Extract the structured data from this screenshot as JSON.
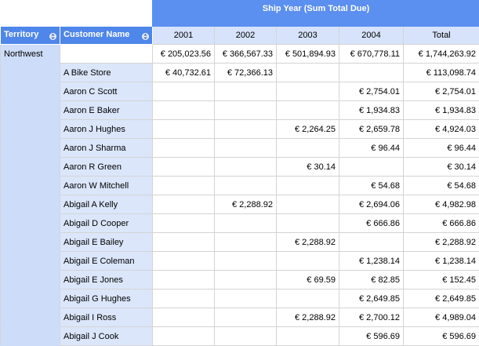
{
  "header": {
    "title": "Ship Year (Sum Total Due)",
    "dimensions": [
      "Territory",
      "Customer Name"
    ],
    "columns": [
      "2001",
      "2002",
      "2003",
      "2004",
      "Total"
    ]
  },
  "rows": [
    {
      "territory": "Northwest",
      "customer": null,
      "cells": [
        "€ 205,023.56",
        "€ 366,567.33",
        "€ 501,894.93",
        "€ 670,778.11",
        "€ 1,744,263.92"
      ]
    },
    {
      "territory": null,
      "customer": "A Bike Store",
      "cells": [
        "€ 40,732.61",
        "€ 72,366.13",
        null,
        null,
        "€ 113,098.74"
      ]
    },
    {
      "territory": null,
      "customer": "Aaron C Scott",
      "cells": [
        null,
        null,
        null,
        "€ 2,754.01",
        "€ 2,754.01"
      ]
    },
    {
      "territory": null,
      "customer": "Aaron E Baker",
      "cells": [
        null,
        null,
        null,
        "€ 1,934.83",
        "€ 1,934.83"
      ]
    },
    {
      "territory": null,
      "customer": "Aaron J Hughes",
      "cells": [
        null,
        null,
        "€ 2,264.25",
        "€ 2,659.78",
        "€ 4,924.03"
      ]
    },
    {
      "territory": null,
      "customer": "Aaron J Sharma",
      "cells": [
        null,
        null,
        null,
        "€ 96.44",
        "€ 96.44"
      ]
    },
    {
      "territory": null,
      "customer": "Aaron R Green",
      "cells": [
        null,
        null,
        "€ 30.14",
        null,
        "€ 30.14"
      ]
    },
    {
      "territory": null,
      "customer": "Aaron W Mitchell",
      "cells": [
        null,
        null,
        null,
        "€ 54.68",
        "€ 54.68"
      ]
    },
    {
      "territory": null,
      "customer": "Abigail A Kelly",
      "cells": [
        null,
        "€ 2,288.92",
        null,
        "€ 2,694.06",
        "€ 4,982.98"
      ]
    },
    {
      "territory": null,
      "customer": "Abigail D Cooper",
      "cells": [
        null,
        null,
        null,
        "€ 666.86",
        "€ 666.86"
      ]
    },
    {
      "territory": null,
      "customer": "Abigail E Bailey",
      "cells": [
        null,
        null,
        "€ 2,288.92",
        null,
        "€ 2,288.92"
      ]
    },
    {
      "territory": null,
      "customer": "Abigail E Coleman",
      "cells": [
        null,
        null,
        null,
        "€ 1,238.14",
        "€ 1,238.14"
      ]
    },
    {
      "territory": null,
      "customer": "Abigail E Jones",
      "cells": [
        null,
        null,
        "€ 69.59",
        "€ 82.85",
        "€ 152.45"
      ]
    },
    {
      "territory": null,
      "customer": "Abigail G Hughes",
      "cells": [
        null,
        null,
        null,
        "€ 2,649.85",
        "€ 2,649.85"
      ]
    },
    {
      "territory": null,
      "customer": "Abigail I Ross",
      "cells": [
        null,
        null,
        "€ 2,288.92",
        "€ 2,700.12",
        "€ 4,989.04"
      ]
    },
    {
      "territory": null,
      "customer": "Abigail J Cook",
      "cells": [
        null,
        null,
        null,
        "€ 596.69",
        "€ 596.69"
      ]
    }
  ]
}
